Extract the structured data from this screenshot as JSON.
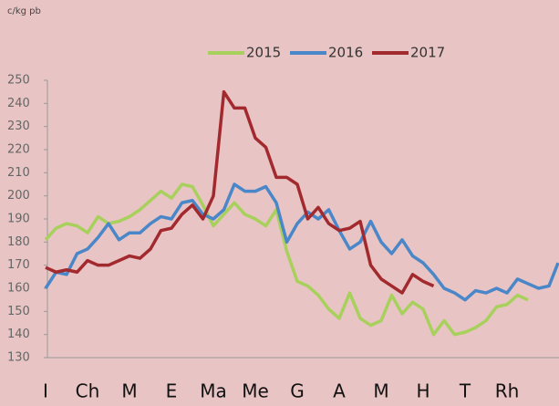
{
  "chart_data": {
    "type": "line",
    "subtitle": "c/kg pb",
    "categories": [
      "I",
      null,
      null,
      null,
      "Ch",
      null,
      null,
      null,
      "M",
      null,
      null,
      null,
      "E",
      null,
      null,
      null,
      "Ma",
      null,
      null,
      null,
      "Me",
      null,
      null,
      null,
      "G",
      null,
      null,
      null,
      "A",
      null,
      null,
      null,
      "M",
      null,
      null,
      null,
      "H",
      null,
      null,
      null,
      "T",
      null,
      null,
      null,
      "Rh",
      null,
      null,
      null,
      null,
      null
    ],
    "series": [
      {
        "name": "2015",
        "color": "#a8d05c",
        "values": [
          181,
          186,
          188,
          187,
          184,
          191,
          188,
          189,
          191,
          194,
          198,
          202,
          199,
          205,
          204,
          196,
          187,
          192,
          197,
          192,
          190,
          187,
          194,
          176,
          163,
          161,
          157,
          151,
          147,
          158,
          147,
          144,
          146,
          157,
          149,
          154,
          151,
          140,
          146,
          140,
          141,
          143,
          146,
          152,
          153,
          157,
          155,
          null,
          null,
          null
        ]
      },
      {
        "name": "2016",
        "color": "#4a87c9",
        "values": [
          160,
          167,
          166,
          175,
          177,
          182,
          188,
          181,
          184,
          184,
          188,
          191,
          190,
          197,
          198,
          192,
          190,
          194,
          205,
          202,
          202,
          204,
          197,
          180,
          188,
          193,
          190,
          194,
          185,
          177,
          180,
          189,
          180,
          175,
          181,
          174,
          171,
          166,
          160,
          158,
          155,
          159,
          158,
          160,
          158,
          164,
          162,
          160,
          161,
          171
        ]
      },
      {
        "name": "2017",
        "color": "#a22a2f",
        "values": [
          169,
          167,
          168,
          167,
          172,
          170,
          170,
          172,
          174,
          173,
          177,
          185,
          186,
          192,
          196,
          190,
          200,
          245,
          238,
          238,
          225,
          221,
          208,
          208,
          205,
          190,
          195,
          188,
          185,
          186,
          189,
          170,
          164,
          161,
          158,
          166,
          163,
          161,
          null,
          null,
          null,
          null,
          null,
          null,
          null,
          null,
          null,
          null,
          null,
          null
        ]
      }
    ],
    "ylim": [
      130,
      250
    ],
    "yticks": [
      130,
      140,
      150,
      160,
      170,
      180,
      190,
      200,
      210,
      220,
      230,
      240,
      250
    ],
    "legend": "top"
  }
}
